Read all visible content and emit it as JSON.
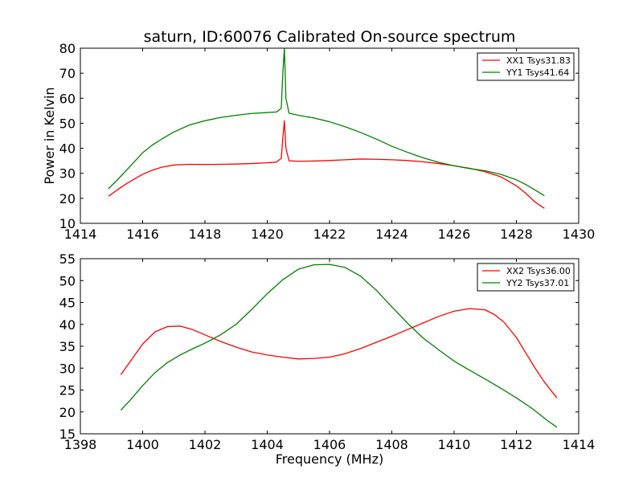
{
  "figure": {
    "title": "saturn, ID:60076 Calibrated On-source spectrum",
    "xlabel": "Frequency (MHz)",
    "ylabel": "Power in Kelvin"
  },
  "chart_data": [
    {
      "type": "line",
      "title": "saturn, ID:60076 Calibrated On-source spectrum",
      "xlabel": "",
      "ylabel": "Power in Kelvin",
      "xlim": [
        1414,
        1430
      ],
      "ylim": [
        10,
        80
      ],
      "xticks": [
        1414,
        1416,
        1418,
        1420,
        1422,
        1424,
        1426,
        1428,
        1430
      ],
      "yticks": [
        10,
        20,
        30,
        40,
        50,
        60,
        70,
        80
      ],
      "grid": false,
      "legend_position": "top-right",
      "series": [
        {
          "name": "XX1 Tsys31.83",
          "color": "#ff0000",
          "x": [
            1414.9,
            1415.2,
            1415.5,
            1415.8,
            1416.0,
            1416.3,
            1416.6,
            1417.0,
            1417.5,
            1418.0,
            1418.5,
            1419.0,
            1419.5,
            1420.0,
            1420.3,
            1420.45,
            1420.5,
            1420.55,
            1420.6,
            1420.7,
            1421.0,
            1421.5,
            1422.0,
            1422.5,
            1423.0,
            1423.5,
            1424.0,
            1424.5,
            1425.0,
            1425.5,
            1426.0,
            1426.5,
            1427.0,
            1427.5,
            1428.0,
            1428.3,
            1428.6,
            1428.9
          ],
          "values": [
            20.8,
            23.5,
            26.0,
            28.2,
            29.6,
            31.2,
            32.4,
            33.3,
            33.6,
            33.5,
            33.6,
            33.7,
            33.9,
            34.2,
            34.5,
            36.0,
            44.0,
            51.0,
            40.0,
            35.0,
            34.8,
            34.9,
            35.1,
            35.4,
            35.7,
            35.6,
            35.4,
            35.1,
            34.6,
            33.9,
            33.0,
            32.0,
            30.6,
            28.6,
            25.0,
            22.0,
            18.5,
            16.0
          ]
        },
        {
          "name": "YY1 Tsys41.64",
          "color": "#008000",
          "x": [
            1414.9,
            1415.2,
            1415.5,
            1415.8,
            1416.0,
            1416.3,
            1416.6,
            1417.0,
            1417.5,
            1418.0,
            1418.5,
            1419.0,
            1419.5,
            1420.0,
            1420.3,
            1420.45,
            1420.5,
            1420.55,
            1420.6,
            1420.7,
            1421.0,
            1421.5,
            1422.0,
            1422.5,
            1423.0,
            1423.5,
            1424.0,
            1424.5,
            1425.0,
            1425.5,
            1426.0,
            1426.5,
            1427.0,
            1427.5,
            1428.0,
            1428.3,
            1428.6,
            1428.9
          ],
          "values": [
            23.8,
            27.5,
            31.5,
            35.5,
            38.2,
            41.2,
            43.6,
            46.5,
            49.3,
            51.0,
            52.3,
            53.2,
            53.9,
            54.3,
            54.5,
            56.0,
            70.0,
            80.0,
            60.0,
            54.0,
            53.2,
            52.1,
            50.6,
            48.6,
            46.3,
            43.7,
            40.8,
            38.4,
            36.2,
            34.4,
            33.0,
            31.9,
            31.0,
            29.6,
            27.4,
            25.5,
            23.3,
            21.0
          ]
        }
      ]
    },
    {
      "type": "line",
      "title": "",
      "xlabel": "Frequency (MHz)",
      "ylabel": "",
      "xlim": [
        1398,
        1414
      ],
      "ylim": [
        15,
        55
      ],
      "xticks": [
        1398,
        1400,
        1402,
        1404,
        1406,
        1408,
        1410,
        1412,
        1414
      ],
      "yticks": [
        15,
        20,
        25,
        30,
        35,
        40,
        45,
        50,
        55
      ],
      "grid": false,
      "legend_position": "top-right",
      "series": [
        {
          "name": "XX2 Tsys36.00",
          "color": "#ff0000",
          "x": [
            1399.3,
            1399.6,
            1400.0,
            1400.4,
            1400.8,
            1401.2,
            1401.6,
            1402.0,
            1402.5,
            1403.0,
            1403.5,
            1404.0,
            1404.5,
            1405.0,
            1405.5,
            1406.0,
            1406.5,
            1407.0,
            1407.5,
            1408.0,
            1408.5,
            1409.0,
            1409.5,
            1410.0,
            1410.5,
            1411.0,
            1411.3,
            1411.6,
            1412.0,
            1412.3,
            1412.6,
            1412.9,
            1413.3
          ],
          "values": [
            28.5,
            31.5,
            35.5,
            38.3,
            39.5,
            39.6,
            38.8,
            37.6,
            36.1,
            34.8,
            33.7,
            33.0,
            32.5,
            32.1,
            32.2,
            32.5,
            33.3,
            34.5,
            35.9,
            37.3,
            38.8,
            40.3,
            41.8,
            43.0,
            43.6,
            43.3,
            42.2,
            40.5,
            37.0,
            33.5,
            30.0,
            26.8,
            23.2
          ]
        },
        {
          "name": "YY2 Tsys37.01",
          "color": "#008000",
          "x": [
            1399.3,
            1399.6,
            1400.0,
            1400.4,
            1400.8,
            1401.2,
            1401.6,
            1402.0,
            1402.5,
            1403.0,
            1403.5,
            1404.0,
            1404.5,
            1405.0,
            1405.5,
            1406.0,
            1406.5,
            1407.0,
            1407.5,
            1408.0,
            1408.5,
            1409.0,
            1409.5,
            1410.0,
            1410.5,
            1411.0,
            1411.5,
            1412.0,
            1412.5,
            1413.0,
            1413.3
          ],
          "values": [
            20.4,
            22.7,
            26.0,
            29.0,
            31.3,
            33.0,
            34.4,
            35.7,
            37.6,
            40.0,
            43.4,
            47.0,
            50.2,
            52.6,
            53.6,
            53.7,
            53.0,
            51.0,
            47.8,
            44.0,
            40.3,
            36.9,
            34.2,
            31.6,
            29.5,
            27.5,
            25.4,
            23.2,
            20.8,
            18.0,
            16.5
          ]
        }
      ]
    }
  ]
}
